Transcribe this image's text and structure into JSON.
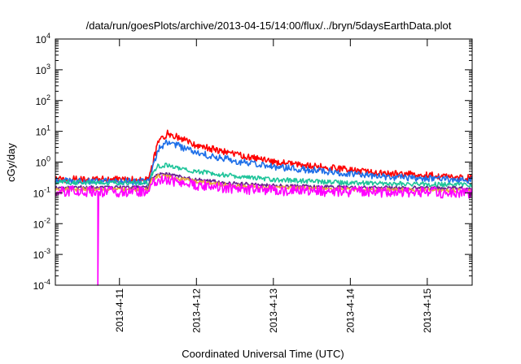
{
  "chart_data": {
    "type": "line",
    "title": "/data/run/goesPlots/archive/2013-04-15/14:00/flux/../bryn/5daysEarthData.plot",
    "xlabel": "Coordinated Universal Time (UTC)",
    "ylabel": "cGy/day",
    "yscale": "log",
    "ylim": [
      0.0001,
      10000
    ],
    "xlim": [
      "2013-04-10 04:00",
      "2013-04-15 14:00"
    ],
    "x_ticks": [
      "2013-4-11",
      "2013-4-12",
      "2013-4-13",
      "2013-4-14",
      "2013-4-15"
    ],
    "y_ticks": [
      {
        "base": "10",
        "exp": "-4",
        "value": 0.0001
      },
      {
        "base": "10",
        "exp": "-3",
        "value": 0.001
      },
      {
        "base": "10",
        "exp": "-2",
        "value": 0.01
      },
      {
        "base": "10",
        "exp": "-1",
        "value": 0.1
      },
      {
        "base": "10",
        "exp": "0",
        "value": 1
      },
      {
        "base": "10",
        "exp": "1",
        "value": 10
      },
      {
        "base": "10",
        "exp": "2",
        "value": 100
      },
      {
        "base": "10",
        "exp": "3",
        "value": 1000
      },
      {
        "base": "10",
        "exp": "4",
        "value": 10000
      }
    ],
    "grid": false,
    "legend": "none",
    "series": [
      {
        "color": "#ff0000",
        "noise": 0.22,
        "points": [
          [
            "2013-04-10 04:00",
            0.28
          ],
          [
            "2013-04-11 09:00",
            0.27
          ],
          [
            "2013-04-11 10:00",
            0.7
          ],
          [
            "2013-04-11 12:00",
            4.0
          ],
          [
            "2013-04-11 15:00",
            8.5
          ],
          [
            "2013-04-11 18:00",
            6.5
          ],
          [
            "2013-04-12 00:00",
            3.5
          ],
          [
            "2013-04-12 12:00",
            1.8
          ],
          [
            "2013-04-13 00:00",
            1.0
          ],
          [
            "2013-04-13 12:00",
            0.75
          ],
          [
            "2013-04-14 00:00",
            0.55
          ],
          [
            "2013-04-14 12:00",
            0.42
          ],
          [
            "2013-04-15 00:00",
            0.38
          ],
          [
            "2013-04-15 14:00",
            0.3
          ]
        ]
      },
      {
        "color": "#1e6fe8",
        "noise": 0.22,
        "points": [
          [
            "2013-04-10 04:00",
            0.24
          ],
          [
            "2013-04-11 09:00",
            0.23
          ],
          [
            "2013-04-11 10:00",
            0.5
          ],
          [
            "2013-04-11 12:00",
            2.5
          ],
          [
            "2013-04-11 15:00",
            4.5
          ],
          [
            "2013-04-11 18:00",
            3.5
          ],
          [
            "2013-04-12 00:00",
            2.0
          ],
          [
            "2013-04-12 12:00",
            1.1
          ],
          [
            "2013-04-13 00:00",
            0.7
          ],
          [
            "2013-04-13 12:00",
            0.55
          ],
          [
            "2013-04-14 00:00",
            0.42
          ],
          [
            "2013-04-14 12:00",
            0.33
          ],
          [
            "2013-04-15 00:00",
            0.29
          ],
          [
            "2013-04-15 14:00",
            0.25
          ]
        ]
      },
      {
        "color": "#1fc49a",
        "noise": 0.15,
        "points": [
          [
            "2013-04-10 04:00",
            0.22
          ],
          [
            "2013-04-11 09:00",
            0.21
          ],
          [
            "2013-04-11 10:00",
            0.4
          ],
          [
            "2013-04-11 12:00",
            0.75
          ],
          [
            "2013-04-11 15:00",
            0.8
          ],
          [
            "2013-04-11 18:00",
            0.65
          ],
          [
            "2013-04-12 00:00",
            0.5
          ],
          [
            "2013-04-12 12:00",
            0.35
          ],
          [
            "2013-04-13 00:00",
            0.27
          ],
          [
            "2013-04-14 00:00",
            0.21
          ],
          [
            "2013-04-15 00:00",
            0.19
          ],
          [
            "2013-04-15 14:00",
            0.18
          ]
        ]
      },
      {
        "color": "#6a1f8f",
        "noise": 0.12,
        "points": [
          [
            "2013-04-10 04:00",
            0.15
          ],
          [
            "2013-04-11 09:00",
            0.15
          ],
          [
            "2013-04-11 10:00",
            0.3
          ],
          [
            "2013-04-11 12:00",
            0.42
          ],
          [
            "2013-04-11 15:00",
            0.4
          ],
          [
            "2013-04-12 00:00",
            0.27
          ],
          [
            "2013-04-12 12:00",
            0.2
          ],
          [
            "2013-04-13 00:00",
            0.17
          ],
          [
            "2013-04-14 00:00",
            0.15
          ],
          [
            "2013-04-15 14:00",
            0.14
          ]
        ]
      },
      {
        "color": "#e8a93a",
        "noise": 0.12,
        "points": [
          [
            "2013-04-10 04:00",
            0.13
          ],
          [
            "2013-04-11 09:00",
            0.13
          ],
          [
            "2013-04-11 10:00",
            0.25
          ],
          [
            "2013-04-11 12:00",
            0.35
          ],
          [
            "2013-04-11 15:00",
            0.33
          ],
          [
            "2013-04-12 00:00",
            0.23
          ],
          [
            "2013-04-12 12:00",
            0.17
          ],
          [
            "2013-04-13 00:00",
            0.15
          ],
          [
            "2013-04-14 00:00",
            0.13
          ],
          [
            "2013-04-15 14:00",
            0.12
          ]
        ]
      },
      {
        "color": "#ff00ff",
        "noise": 0.35,
        "points": [
          [
            "2013-04-10 04:00",
            0.11
          ],
          [
            "2013-04-10 17:00",
            0.11
          ],
          [
            "2013-04-10 17:15",
            0.0001
          ],
          [
            "2013-04-10 17:30",
            0.11
          ],
          [
            "2013-04-11 09:00",
            0.11
          ],
          [
            "2013-04-11 10:00",
            0.2
          ],
          [
            "2013-04-11 12:00",
            0.28
          ],
          [
            "2013-04-11 15:00",
            0.26
          ],
          [
            "2013-04-12 00:00",
            0.18
          ],
          [
            "2013-04-12 12:00",
            0.14
          ],
          [
            "2013-04-13 00:00",
            0.12
          ],
          [
            "2013-04-14 00:00",
            0.11
          ],
          [
            "2013-04-15 14:00",
            0.1
          ]
        ]
      }
    ]
  }
}
